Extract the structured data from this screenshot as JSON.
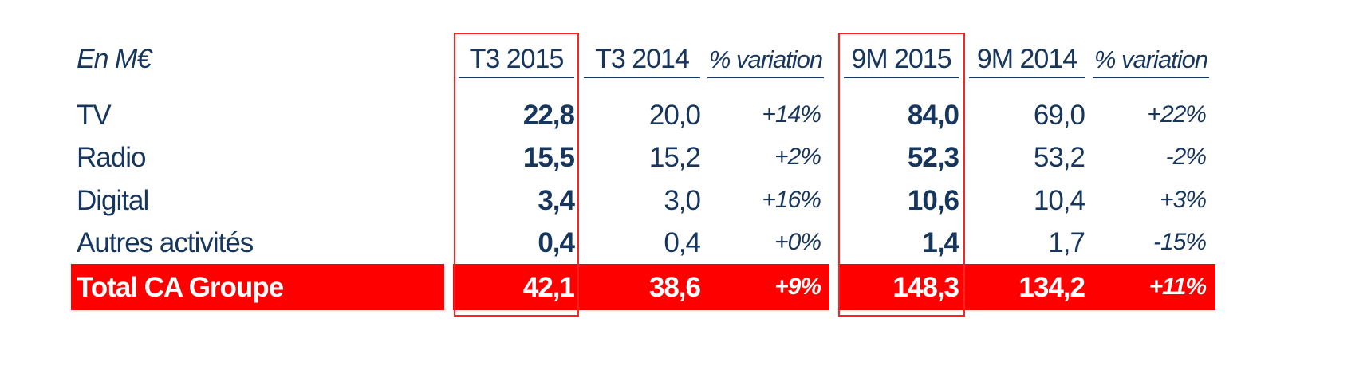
{
  "colors": {
    "text": "#17365d",
    "total_bg": "#ff0000",
    "highlight_border": "#ff2020"
  },
  "header": {
    "unit_label": "En M€",
    "columns": [
      "T3 2015",
      "T3 2014",
      "% variation",
      "9M 2015",
      "9M 2014",
      "% variation"
    ]
  },
  "rows": [
    {
      "label": "TV",
      "t3_2015": "22,8",
      "t3_2014": "20,0",
      "t3_var": "+14%",
      "m9_2015": "84,0",
      "m9_2014": "69,0",
      "m9_var": "+22%"
    },
    {
      "label": "Radio",
      "t3_2015": "15,5",
      "t3_2014": "15,2",
      "t3_var": "+2%",
      "m9_2015": "52,3",
      "m9_2014": "53,2",
      "m9_var": "-2%"
    },
    {
      "label": "Digital",
      "t3_2015": "3,4",
      "t3_2014": "3,0",
      "t3_var": "+16%",
      "m9_2015": "10,6",
      "m9_2014": "10,4",
      "m9_var": "+3%"
    },
    {
      "label": "Autres activités",
      "t3_2015": "0,4",
      "t3_2014": "0,4",
      "t3_var": "+0%",
      "m9_2015": "1,4",
      "m9_2014": "1,7",
      "m9_var": "-15%"
    }
  ],
  "total": {
    "label": "Total CA Groupe",
    "t3_2015": "42,1",
    "t3_2014": "38,6",
    "t3_var": "+9%",
    "m9_2015": "148,3",
    "m9_2014": "134,2",
    "m9_var": "+11%"
  }
}
